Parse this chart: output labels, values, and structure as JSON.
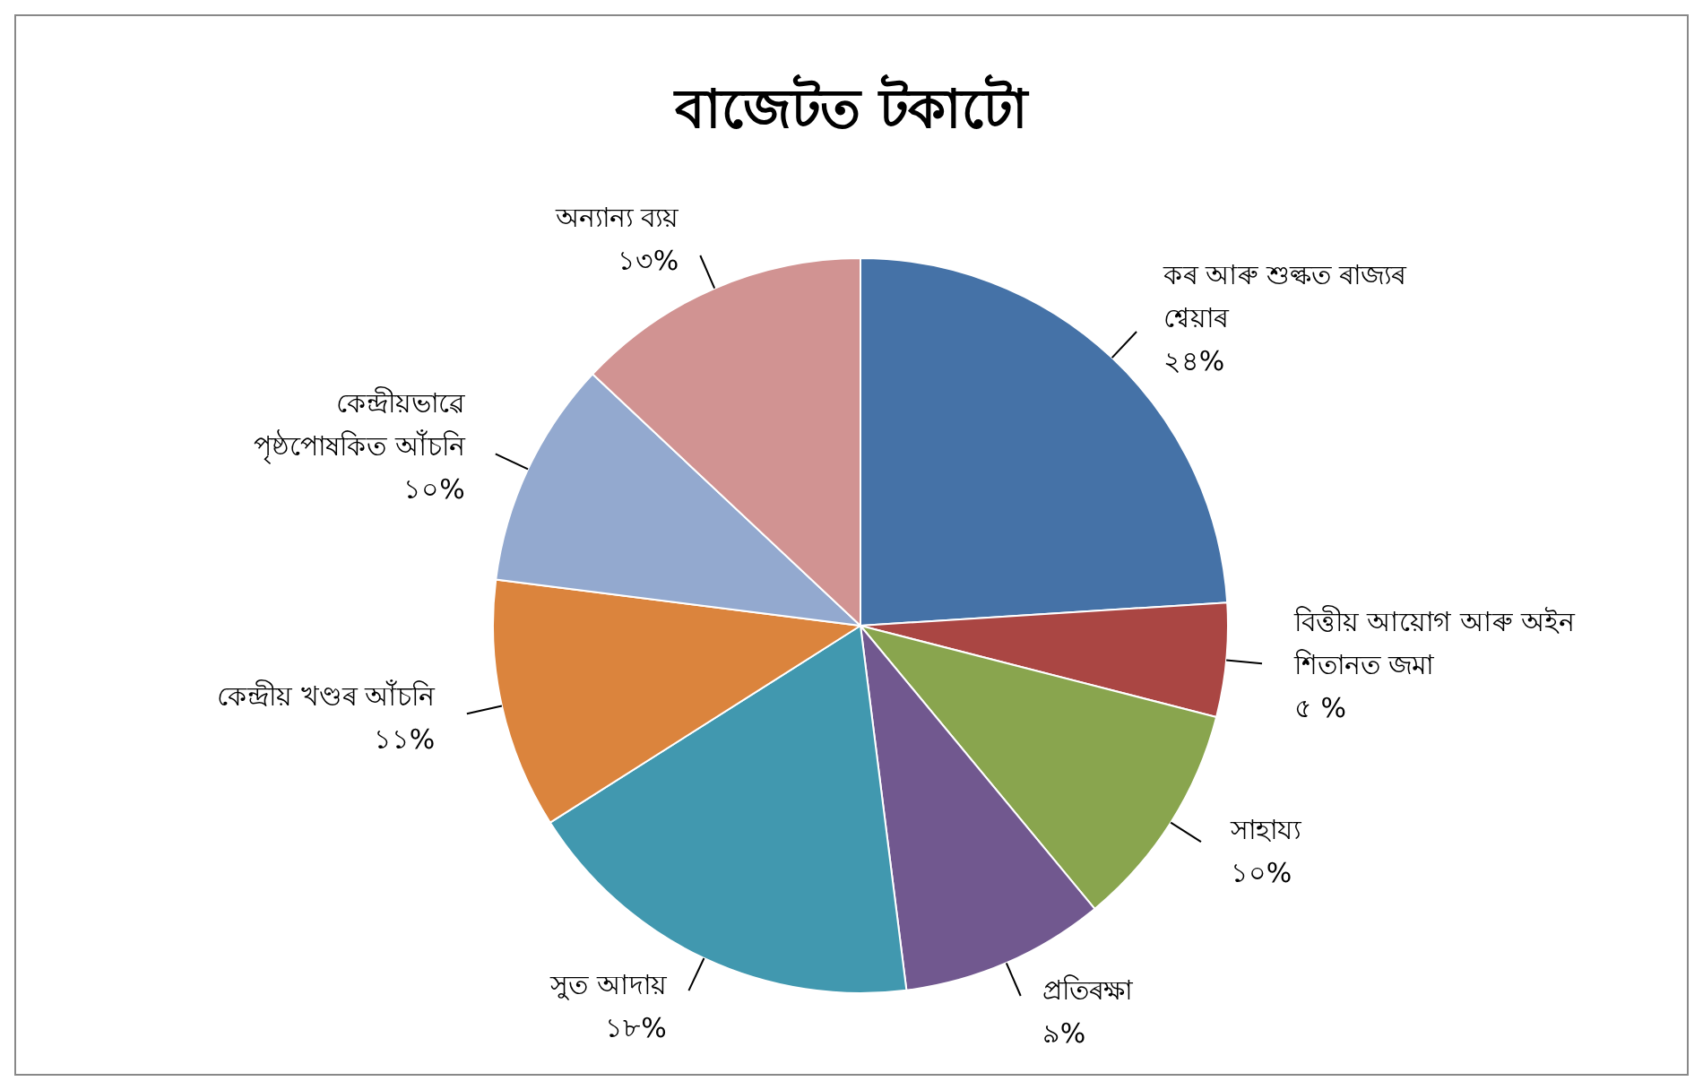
{
  "chart_data": {
    "type": "pie",
    "title": "বাজেটত টকাটো",
    "categories": [
      "কৰ আৰু শুল্কত ৰাজ্যৰ শ্বেয়াৰ",
      "বিত্তীয় আয়োগ আৰু অইন শিতানত জমা",
      "সাহায্য",
      "প্ৰতিৰক্ষা",
      "সুত আদায়",
      "কেন্দ্ৰীয় খণ্ডৰ আঁচনি",
      "কেন্দ্ৰীয়ভাৱে পৃষ্ঠপোষকিত আঁচনি",
      "অন্যান্য ব্যয়"
    ],
    "values": [
      24,
      5,
      10,
      9,
      18,
      11,
      10,
      13
    ],
    "value_labels": [
      "২৪%",
      "৫ %",
      "১০%",
      "৯%",
      "১৮%",
      "১১%",
      "১০%",
      "১৩%"
    ],
    "colors": [
      "#4572a7",
      "#aa4643",
      "#89a54e",
      "#71588f",
      "#4198af",
      "#db843d",
      "#93a9cf",
      "#d19392"
    ]
  }
}
